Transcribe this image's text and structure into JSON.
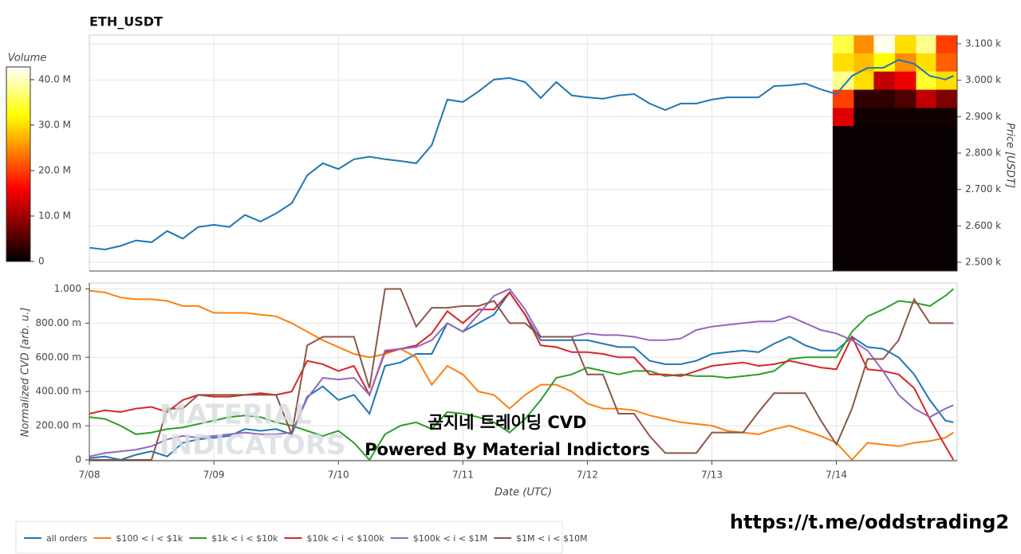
{
  "link": "https://t.me/oddstrading2",
  "chart_data": [
    {
      "type": "line",
      "title": "ETH_USDT",
      "ylabel": "Price [USDT]",
      "xlim": [
        0,
        6.97
      ],
      "xticks": [
        0,
        1,
        2,
        3,
        4,
        5,
        6
      ],
      "ylim": [
        2476,
        3124
      ],
      "yticks": [
        {
          "value": 2500,
          "label": "2.500 k"
        },
        {
          "value": 2600,
          "label": "2.600 k"
        },
        {
          "value": 2700,
          "label": "2.700 k"
        },
        {
          "value": 2800,
          "label": "2.800 k"
        },
        {
          "value": 2900,
          "label": "2.900 k"
        },
        {
          "value": 3000,
          "label": "3.000 k"
        },
        {
          "value": 3100,
          "label": "3.100 k"
        }
      ],
      "grid": true,
      "x": [
        0,
        0.125,
        0.25,
        0.375,
        0.5,
        0.625,
        0.75,
        0.875,
        1,
        1.125,
        1.25,
        1.375,
        1.5,
        1.625,
        1.75,
        1.875,
        2,
        2.125,
        2.25,
        2.375,
        2.5,
        2.625,
        2.75,
        2.875,
        3,
        3.125,
        3.25,
        3.375,
        3.5,
        3.625,
        3.75,
        3.875,
        4,
        4.125,
        4.25,
        4.375,
        4.5,
        4.625,
        4.75,
        4.875,
        5,
        5.125,
        5.25,
        5.375,
        5.5,
        5.625,
        5.75,
        5.875,
        6,
        6.125,
        6.25,
        6.375,
        6.5,
        6.625,
        6.75,
        6.875,
        6.94
      ],
      "series": [
        {
          "color": "#1f77b4",
          "values": [
            2540,
            2535,
            2545,
            2560,
            2555,
            2586,
            2565,
            2597,
            2603,
            2597,
            2630,
            2612,
            2634,
            2662,
            2739,
            2772,
            2756,
            2783,
            2790,
            2783,
            2778,
            2772,
            2822,
            2947,
            2940,
            2969,
            3002,
            3006,
            2995,
            2951,
            2995,
            2958,
            2953,
            2949,
            2958,
            2962,
            2936,
            2918,
            2936,
            2936,
            2947,
            2953,
            2953,
            2953,
            2984,
            2986,
            2991,
            2975,
            2962,
            3012,
            3034,
            3034,
            3056,
            3045,
            3012,
            3002,
            3012
          ]
        }
      ],
      "heatmap": {
        "title": "Volume",
        "xbins": [
          5.97,
          6.14,
          6.3,
          6.47,
          6.64,
          6.8,
          6.97
        ],
        "ybins": [
          2475,
          2525,
          2575,
          2625,
          2675,
          2725,
          2775,
          2825,
          2875,
          2925,
          2975,
          3025,
          3075,
          3125
        ],
        "z": [
          [
            500000,
            500000,
            500000,
            500000,
            500000,
            500000
          ],
          [
            500000,
            500000,
            500000,
            500000,
            500000,
            500000
          ],
          [
            500000,
            500000,
            500000,
            500000,
            500000,
            500000
          ],
          [
            500000,
            500000,
            500000,
            500000,
            500000,
            500000
          ],
          [
            500000,
            500000,
            500000,
            500000,
            500000,
            500000
          ],
          [
            500000,
            500000,
            500000,
            500000,
            500000,
            500000
          ],
          [
            500000,
            500000,
            500000,
            500000,
            500000,
            500000
          ],
          [
            500000,
            500000,
            500000,
            500000,
            500000,
            500000
          ],
          [
            14000000,
            1000000,
            1000000,
            1000000,
            1000000,
            1000000
          ],
          [
            20000000,
            3000000,
            3000000,
            5000000,
            12000000,
            8000000
          ],
          [
            38000000,
            30000000,
            12000000,
            15000000,
            34000000,
            30000000
          ],
          [
            30000000,
            28000000,
            32000000,
            25000000,
            30000000,
            22000000
          ],
          [
            35000000,
            25000000,
            42000000,
            30000000,
            38000000,
            20000000
          ]
        ],
        "zlim": [
          0,
          42800000
        ],
        "zticks": [
          0,
          {
            "value": 10000000,
            "label": "10.0 M"
          },
          {
            "value": 20000000,
            "label": "20.0 M"
          },
          {
            "value": 30000000,
            "label": "30.0 M"
          },
          {
            "value": 40000000,
            "label": "40.0 M"
          }
        ]
      }
    },
    {
      "type": "line",
      "xlabel": "Date (UTC)",
      "ylabel": "Normalized CVD [arb. u.]",
      "xlim": [
        0,
        6.97
      ],
      "xticks": [
        {
          "value": 0,
          "label": "7/08"
        },
        {
          "value": 1,
          "label": "7/09"
        },
        {
          "value": 2,
          "label": "7/10"
        },
        {
          "value": 3,
          "label": "7/11"
        },
        {
          "value": 4,
          "label": "7/12"
        },
        {
          "value": 5,
          "label": "7/13"
        },
        {
          "value": 6,
          "label": "7/14"
        }
      ],
      "ylim": [
        -0.005,
        1.035
      ],
      "yticks": [
        0,
        {
          "value": 0.2,
          "label": "200.00 m"
        },
        {
          "value": 0.4,
          "label": "400.00 m"
        },
        {
          "value": 0.6,
          "label": "600.00 m"
        },
        {
          "value": 0.8,
          "label": "800.00 m"
        },
        {
          "value": 1,
          "label": "1.000"
        }
      ],
      "grid": true,
      "annotations": [
        "곰지네 트레이딩 CVD",
        "Powered By Material Indictors"
      ],
      "watermark": [
        "MATERIAL",
        "INDICATORS"
      ],
      "x": [
        0,
        0.125,
        0.25,
        0.375,
        0.5,
        0.625,
        0.75,
        0.875,
        1,
        1.125,
        1.25,
        1.375,
        1.5,
        1.625,
        1.75,
        1.875,
        2,
        2.125,
        2.25,
        2.375,
        2.5,
        2.625,
        2.75,
        2.875,
        3,
        3.125,
        3.25,
        3.375,
        3.5,
        3.625,
        3.75,
        3.875,
        4,
        4.125,
        4.25,
        4.375,
        4.5,
        4.625,
        4.75,
        4.875,
        5,
        5.125,
        5.25,
        5.375,
        5.5,
        5.625,
        5.75,
        5.875,
        6,
        6.125,
        6.25,
        6.375,
        6.5,
        6.625,
        6.75,
        6.875,
        6.94
      ],
      "series": [
        {
          "name": "all orders",
          "color": "#1f77b4",
          "values": [
            0.01,
            0.02,
            0,
            0.03,
            0.05,
            0.02,
            0.1,
            0.12,
            0.13,
            0.14,
            0.18,
            0.17,
            0.18,
            0.15,
            0.37,
            0.43,
            0.35,
            0.38,
            0.27,
            0.55,
            0.57,
            0.62,
            0.62,
            0.8,
            0.75,
            0.8,
            0.85,
            0.98,
            0.85,
            0.7,
            0.7,
            0.7,
            0.7,
            0.68,
            0.66,
            0.66,
            0.58,
            0.56,
            0.56,
            0.58,
            0.62,
            0.63,
            0.64,
            0.63,
            0.68,
            0.72,
            0.67,
            0.64,
            0.64,
            0.72,
            0.66,
            0.65,
            0.6,
            0.5,
            0.35,
            0.23,
            0.22
          ]
        },
        {
          "name": "$100 < i < $1k",
          "color": "#ff7f0e",
          "values": [
            0.99,
            0.98,
            0.95,
            0.94,
            0.94,
            0.93,
            0.9,
            0.9,
            0.86,
            0.86,
            0.86,
            0.85,
            0.84,
            0.8,
            0.75,
            0.7,
            0.66,
            0.62,
            0.6,
            0.62,
            0.65,
            0.6,
            0.44,
            0.55,
            0.5,
            0.4,
            0.38,
            0.3,
            0.38,
            0.44,
            0.44,
            0.4,
            0.33,
            0.3,
            0.3,
            0.29,
            0.26,
            0.24,
            0.22,
            0.21,
            0.2,
            0.17,
            0.16,
            0.15,
            0.18,
            0.2,
            0.17,
            0.14,
            0.1,
            0,
            0.1,
            0.09,
            0.08,
            0.1,
            0.11,
            0.13,
            0.16
          ]
        },
        {
          "name": "$1k < i < $10k",
          "color": "#2ca02c",
          "values": [
            0.25,
            0.24,
            0.2,
            0.15,
            0.16,
            0.18,
            0.19,
            0.21,
            0.23,
            0.25,
            0.26,
            0.25,
            0.22,
            0.2,
            0.17,
            0.14,
            0.17,
            0.1,
            0,
            0.15,
            0.2,
            0.22,
            0.18,
            0.28,
            0.27,
            0.25,
            0.22,
            0.16,
            0.24,
            0.35,
            0.48,
            0.5,
            0.54,
            0.52,
            0.5,
            0.52,
            0.52,
            0.49,
            0.5,
            0.49,
            0.49,
            0.48,
            0.49,
            0.5,
            0.52,
            0.59,
            0.6,
            0.6,
            0.6,
            0.75,
            0.84,
            0.88,
            0.93,
            0.92,
            0.9,
            0.96,
            1
          ]
        },
        {
          "name": "$10k < i < $100k",
          "color": "#d62728",
          "values": [
            0.27,
            0.29,
            0.28,
            0.3,
            0.31,
            0.28,
            0.35,
            0.38,
            0.37,
            0.37,
            0.38,
            0.39,
            0.38,
            0.4,
            0.58,
            0.56,
            0.52,
            0.55,
            0.38,
            0.63,
            0.65,
            0.67,
            0.74,
            0.87,
            0.8,
            0.88,
            0.88,
            0.98,
            0.85,
            0.67,
            0.66,
            0.63,
            0.63,
            0.62,
            0.6,
            0.6,
            0.5,
            0.5,
            0.49,
            0.52,
            0.55,
            0.56,
            0.57,
            0.55,
            0.56,
            0.58,
            0.56,
            0.54,
            0.53,
            0.72,
            0.53,
            0.52,
            0.5,
            0.42,
            0.24,
            0.08,
            0
          ]
        },
        {
          "name": "$100k < i < $1M",
          "color": "#9467bd",
          "values": [
            0.02,
            0.04,
            0.05,
            0.06,
            0.08,
            0.12,
            0.14,
            0.13,
            0.14,
            0.15,
            0.16,
            0.15,
            0.15,
            0.16,
            0.36,
            0.48,
            0.47,
            0.48,
            0.38,
            0.64,
            0.65,
            0.66,
            0.7,
            0.8,
            0.75,
            0.85,
            0.96,
            1,
            0.88,
            0.72,
            0.72,
            0.72,
            0.74,
            0.73,
            0.73,
            0.72,
            0.7,
            0.7,
            0.71,
            0.76,
            0.78,
            0.79,
            0.8,
            0.81,
            0.81,
            0.84,
            0.8,
            0.76,
            0.74,
            0.7,
            0.64,
            0.52,
            0.38,
            0.3,
            0.25,
            0.3,
            0.32
          ]
        },
        {
          "name": "$1M < i < $10M",
          "color": "#8c564b",
          "values": [
            0,
            0,
            0,
            0,
            0,
            0.3,
            0.3,
            0.38,
            0.38,
            0.38,
            0.38,
            0.38,
            0.38,
            0.15,
            0.67,
            0.72,
            0.72,
            0.72,
            0.42,
            1,
            1,
            0.78,
            0.89,
            0.89,
            0.9,
            0.9,
            0.93,
            0.8,
            0.8,
            0.72,
            0.72,
            0.72,
            0.5,
            0.5,
            0.27,
            0.27,
            0.14,
            0.04,
            0.04,
            0.04,
            0.16,
            0.16,
            0.16,
            0.28,
            0.39,
            0.39,
            0.39,
            0.23,
            0.09,
            0.3,
            0.59,
            0.59,
            0.7,
            0.94,
            0.8,
            0.8,
            0.8
          ]
        }
      ]
    }
  ]
}
